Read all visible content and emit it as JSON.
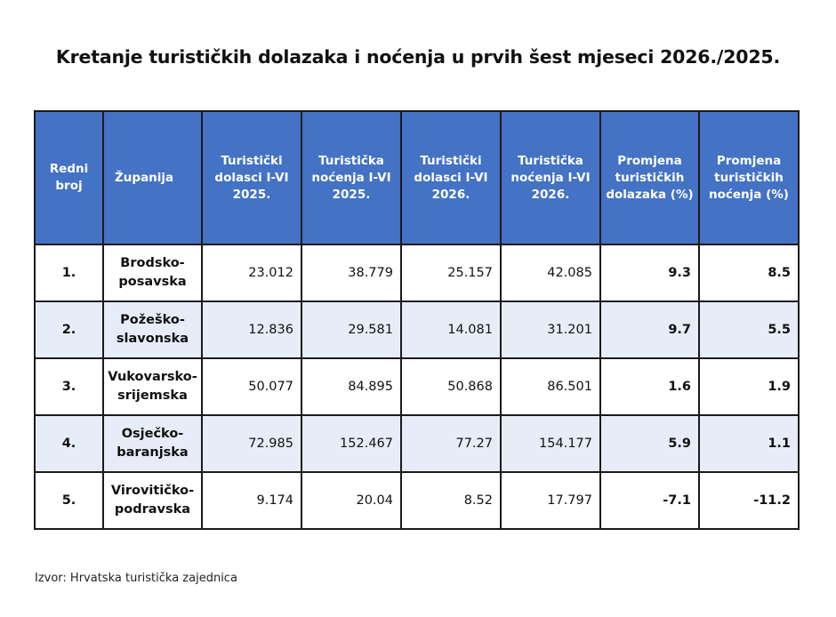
{
  "title": "Kretanje turističkih dolazaka i noćenja u prvih šest mjeseci 2026./2025.",
  "table": {
    "headers": {
      "redni_broj": "Redni broj",
      "zupanija": "Županija",
      "dolasci_2025": "Turistički dolasci I-VI 2025.",
      "nocenja_2025": "Turistička noćenja I-VI 2025.",
      "dolasci_2026": "Turistički dolasci I-VI 2026.",
      "nocenja_2026": "Turistička noćenja I-VI 2026.",
      "promjena_dolazaka": "Promjena turističkih dolazaka (%)",
      "promjena_nocenja": "Promjena turističkih noćenja (%)"
    },
    "rows": [
      {
        "rb": "1.",
        "zupanija": "Brodsko-posavska",
        "dolasci_2025": "23.012",
        "nocenja_2025": "38.779",
        "dolasci_2026": "25.157",
        "nocenja_2026": "42.085",
        "promjena_dolazaka": "9.3",
        "promjena_nocenja": "8.5"
      },
      {
        "rb": "2.",
        "zupanija": "Požeško-slavonska",
        "dolasci_2025": "12.836",
        "nocenja_2025": "29.581",
        "dolasci_2026": "14.081",
        "nocenja_2026": "31.201",
        "promjena_dolazaka": "9.7",
        "promjena_nocenja": "5.5"
      },
      {
        "rb": "3.",
        "zupanija": "Vukovarsko-srijemska",
        "dolasci_2025": "50.077",
        "nocenja_2025": "84.895",
        "dolasci_2026": "50.868",
        "nocenja_2026": "86.501",
        "promjena_dolazaka": "1.6",
        "promjena_nocenja": "1.9"
      },
      {
        "rb": "4.",
        "zupanija": "Osječko-baranjska",
        "dolasci_2025": "72.985",
        "nocenja_2025": "152.467",
        "dolasci_2026": "77.27",
        "nocenja_2026": "154.177",
        "promjena_dolazaka": "5.9",
        "promjena_nocenja": "1.1"
      },
      {
        "rb": "5.",
        "zupanija": "Virovitičko-podravska",
        "dolasci_2025": "9.174",
        "nocenja_2025": "20.04",
        "dolasci_2026": "8.52",
        "nocenja_2026": "17.797",
        "promjena_dolazaka": "-7.1",
        "promjena_nocenja": "-11.2"
      }
    ]
  },
  "source": "Izvor: Hrvatska turistička zajednica",
  "colors": {
    "header_background": "#4472c4",
    "header_text": "#ffffff",
    "row_band": "#e7edf8",
    "border": "#1a1a1a"
  }
}
